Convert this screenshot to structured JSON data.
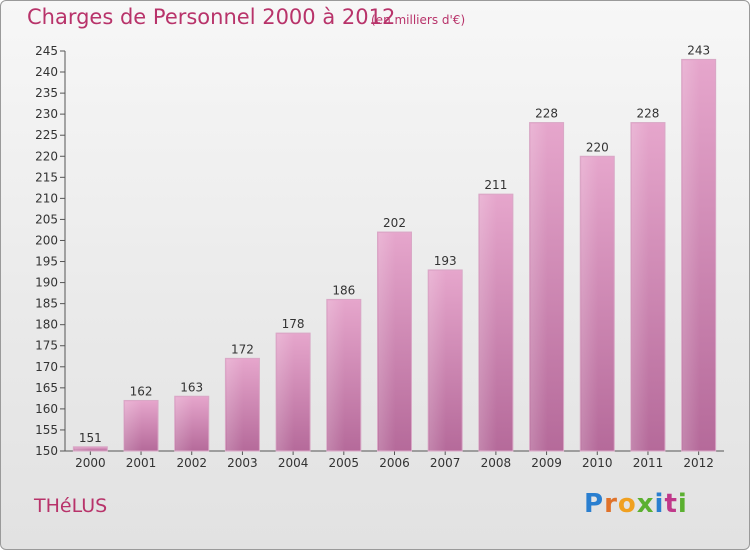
{
  "title": "Charges de Personnel 2000 à 2012",
  "subtitle": "(en milliers d'€)",
  "place": "THéLUS",
  "logo": {
    "letters": [
      "P",
      "r",
      "o",
      "x",
      "i",
      "t",
      "i"
    ],
    "colors": [
      "#2a7fd0",
      "#e0722a",
      "#f0a020",
      "#5bb030",
      "#2a7fd0",
      "#c0388a",
      "#5bb030"
    ]
  },
  "chart_data": {
    "type": "bar",
    "title": "Charges de Personnel 2000 à 2012",
    "subtitle": "(en milliers d'€)",
    "xlabel": "",
    "ylabel": "",
    "categories": [
      "2000",
      "2001",
      "2002",
      "2003",
      "2004",
      "2005",
      "2006",
      "2007",
      "2008",
      "2009",
      "2010",
      "2011",
      "2012"
    ],
    "values": [
      151,
      162,
      163,
      172,
      178,
      186,
      202,
      193,
      211,
      228,
      220,
      228,
      243
    ],
    "ylim": [
      150,
      245
    ],
    "ytick_step": 5,
    "grid": false,
    "bar_color": "#c8649a"
  }
}
